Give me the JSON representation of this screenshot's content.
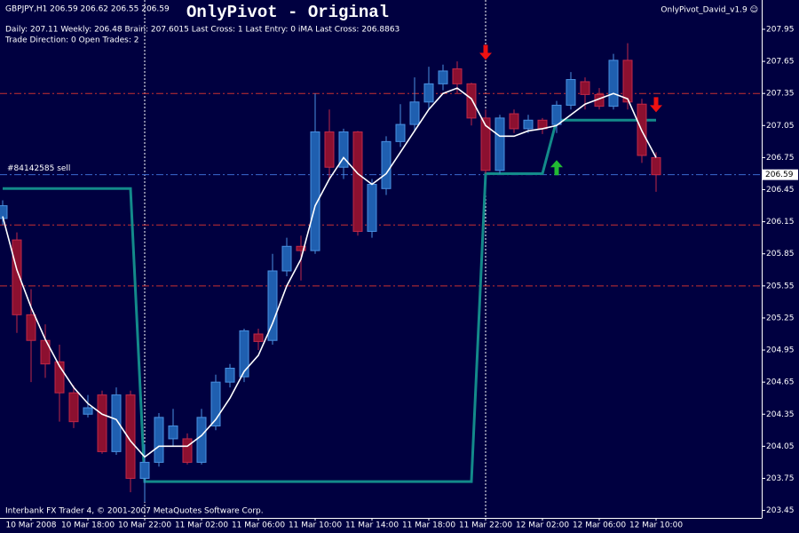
{
  "chart_data": {
    "type": "candlestick",
    "title": "OnlyPivot - Original",
    "symbol_line": "GBPJPY,H1  206.59 206.62 206.55 206.59",
    "info_line": "Daily: 207.11 Weekly: 206.48 Brain: 207.6015 Last Cross: 1 Last Entry: 0 iMA Last Cross: 206.8863",
    "trade_line": "Trade Direction: 0 Open Trades: 2",
    "indicator_name": "OnlyPivot_David_v1.9 ☺",
    "footer": "Interbank FX Trader 4, © 2001-2007 MetaQuotes Software Corp.",
    "order_label": "#84142585 sell",
    "categories": [
      null,
      null,
      "10 Mar 2008",
      null,
      null,
      null,
      "10 Mar 18:00",
      null,
      null,
      null,
      "10 Mar 22:00",
      null,
      null,
      null,
      "11 Mar 02:00",
      null,
      null,
      null,
      "11 Mar 06:00",
      null,
      null,
      null,
      "11 Mar 10:00",
      null,
      null,
      null,
      "11 Mar 14:00",
      null,
      null,
      null,
      "11 Mar 18:00",
      null,
      null,
      null,
      "11 Mar 22:00",
      null,
      null,
      null,
      "12 Mar 02:00",
      null,
      null,
      null,
      "12 Mar 06:00",
      null,
      null,
      null,
      "12 Mar 10:00"
    ],
    "open": [
      206.18,
      205.98,
      205.28,
      205.04,
      204.84,
      204.55,
      204.35,
      204.53,
      204.0,
      204.53,
      203.75,
      203.9,
      204.12,
      204.12,
      203.9,
      204.24,
      204.65,
      204.7,
      205.1,
      205.04,
      205.69,
      205.92,
      205.88,
      206.99,
      206.66,
      206.99,
      206.06,
      206.46,
      206.9,
      207.06,
      207.27,
      207.44,
      207.58,
      207.44,
      207.12,
      206.63,
      207.16,
      207.02,
      207.1,
      207.06,
      207.24,
      207.46,
      207.34,
      207.23,
      207.66,
      207.25,
      206.75
    ],
    "high": [
      206.35,
      206.05,
      205.52,
      205.19,
      205.0,
      204.62,
      204.53,
      204.57,
      204.6,
      204.57,
      204.07,
      204.36,
      204.4,
      204.17,
      204.4,
      204.72,
      204.82,
      205.15,
      205.15,
      205.85,
      206.0,
      206.02,
      207.35,
      207.2,
      207.02,
      207.0,
      206.55,
      206.95,
      207.25,
      207.5,
      207.6,
      207.62,
      207.65,
      207.45,
      207.2,
      207.15,
      207.2,
      207.15,
      207.12,
      207.28,
      207.55,
      207.5,
      207.4,
      207.72,
      207.82,
      207.3,
      206.8
    ],
    "low": [
      206.12,
      205.11,
      204.65,
      204.69,
      204.28,
      204.22,
      204.32,
      203.98,
      203.97,
      203.62,
      203.53,
      203.86,
      204.05,
      203.88,
      203.88,
      204.2,
      204.6,
      204.65,
      204.95,
      205.0,
      205.64,
      205.6,
      205.85,
      206.55,
      206.55,
      206.02,
      206.0,
      206.4,
      206.85,
      207.0,
      207.2,
      207.38,
      207.35,
      207.05,
      206.6,
      206.6,
      206.98,
      206.98,
      206.97,
      206.98,
      207.2,
      207.2,
      207.2,
      207.2,
      207.2,
      206.7,
      206.43
    ],
    "close": [
      206.3,
      205.28,
      205.04,
      204.82,
      204.55,
      204.28,
      204.41,
      204.0,
      204.53,
      203.75,
      203.9,
      204.32,
      204.24,
      203.9,
      204.32,
      204.65,
      204.78,
      205.13,
      205.03,
      205.69,
      205.92,
      205.88,
      206.99,
      206.66,
      206.99,
      206.06,
      206.5,
      206.9,
      207.06,
      207.27,
      207.44,
      207.56,
      207.44,
      207.12,
      206.63,
      207.12,
      207.02,
      207.1,
      207.02,
      207.24,
      207.48,
      207.34,
      207.23,
      207.66,
      207.27,
      206.77,
      206.59
    ],
    "ma": [
      206.2,
      205.7,
      205.35,
      205.05,
      204.8,
      204.6,
      204.45,
      204.35,
      204.3,
      204.1,
      203.95,
      204.05,
      204.05,
      204.05,
      204.15,
      204.3,
      204.5,
      204.75,
      204.9,
      205.2,
      205.55,
      205.8,
      206.3,
      206.55,
      206.75,
      206.6,
      206.5,
      206.6,
      206.8,
      207.0,
      207.2,
      207.35,
      207.4,
      207.3,
      207.05,
      206.95,
      206.95,
      207.0,
      207.02,
      207.05,
      207.15,
      207.25,
      207.3,
      207.35,
      207.3,
      207.0,
      206.75
    ],
    "pivot": [
      206.46,
      206.46,
      206.46,
      206.46,
      206.46,
      206.46,
      206.46,
      206.46,
      206.46,
      206.46,
      203.72,
      203.72,
      203.72,
      203.72,
      203.72,
      203.72,
      203.72,
      203.72,
      203.72,
      203.72,
      203.72,
      203.72,
      203.72,
      203.72,
      203.72,
      203.72,
      203.72,
      203.72,
      203.72,
      203.72,
      203.72,
      203.72,
      203.72,
      203.72,
      206.6,
      206.6,
      206.6,
      206.6,
      206.6,
      207.1,
      207.1,
      207.1,
      207.1,
      207.1,
      207.1,
      207.1,
      207.1
    ],
    "levels": [
      207.35,
      206.12,
      205.55
    ],
    "last_price": 206.59,
    "session_starts": [
      10,
      34
    ],
    "signals": [
      {
        "index": 34,
        "direction": "down",
        "price": 207.73
      },
      {
        "index": 39,
        "direction": "up",
        "price": 206.66
      },
      {
        "index": 46,
        "direction": "down",
        "price": 207.24
      }
    ],
    "ylim": [
      203.38,
      208.224
    ],
    "yticks": [
      207.95,
      207.65,
      207.35,
      207.05,
      206.75,
      206.45,
      206.15,
      205.85,
      205.55,
      205.25,
      204.95,
      204.65,
      204.35,
      204.05,
      203.75,
      203.45
    ],
    "bull_color": "#1f5fb0",
    "bear_color": "#8c1030",
    "ma_color": "#ffffff",
    "pivot_color": "#138a8a",
    "level_color": "#c83030",
    "price_line_color": "#3a6ad0",
    "up_color": "#22bb33",
    "down_color": "#ee1111"
  }
}
